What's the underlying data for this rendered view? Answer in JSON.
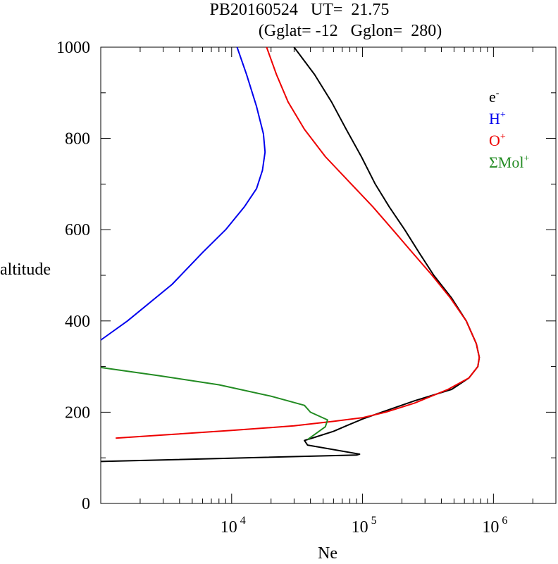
{
  "chart_data": {
    "type": "line",
    "title": "PB20160524   UT=  21.75",
    "subtitle": "(Gglat= -12   Gglon=  280)",
    "xlabel": "Ne",
    "ylabel": "altitude",
    "x_scale": "log",
    "xlim": [
      1000,
      3000000
    ],
    "ylim": [
      0,
      1000
    ],
    "y_ticks": [
      0,
      200,
      400,
      600,
      800,
      1000
    ],
    "y_tick_labels": [
      "0",
      "200",
      "400",
      "600",
      "800",
      "1000"
    ],
    "x_ticks": [
      {
        "value": 10000,
        "base": "10",
        "exp": "4"
      },
      {
        "value": 100000,
        "base": "10",
        "exp": "5"
      },
      {
        "value": 1000000,
        "base": "10",
        "exp": "6"
      }
    ],
    "legend": {
      "placement": "top-right",
      "entries": [
        {
          "base": "e",
          "sup": "-",
          "color": "#000000",
          "series": "e-"
        },
        {
          "base": "H",
          "sup": "+",
          "color": "#0000ee",
          "series": "H+"
        },
        {
          "base": "O",
          "sup": "+",
          "color": "#ee0000",
          "series": "O+"
        },
        {
          "base": "ΣMol",
          "sup": "+",
          "color": "#228b22",
          "series": "ΣMol+"
        }
      ]
    },
    "series": [
      {
        "name": "e-",
        "color": "#000000",
        "points": [
          [
            1000,
            92
          ],
          [
            90000,
            106
          ],
          [
            95000,
            108
          ],
          [
            38000,
            128
          ],
          [
            36000,
            138
          ],
          [
            40000,
            142
          ],
          [
            60000,
            158
          ],
          [
            75000,
            170
          ],
          [
            100000,
            185
          ],
          [
            140000,
            200
          ],
          [
            250000,
            225
          ],
          [
            480000,
            250
          ],
          [
            650000,
            275
          ],
          [
            760000,
            300
          ],
          [
            780000,
            320
          ],
          [
            740000,
            350
          ],
          [
            620000,
            400
          ],
          [
            480000,
            450
          ],
          [
            350000,
            500
          ],
          [
            270000,
            550
          ],
          [
            210000,
            600
          ],
          [
            160000,
            650
          ],
          [
            125000,
            700
          ],
          [
            98000,
            760
          ],
          [
            75000,
            820
          ],
          [
            58000,
            880
          ],
          [
            43000,
            940
          ],
          [
            30000,
            1000
          ]
        ]
      },
      {
        "name": "H+",
        "color": "#0000ee",
        "points": [
          [
            1000,
            358
          ],
          [
            1600,
            400
          ],
          [
            3500,
            480
          ],
          [
            6000,
            550
          ],
          [
            9000,
            600
          ],
          [
            12500,
            650
          ],
          [
            15500,
            690
          ],
          [
            17200,
            730
          ],
          [
            18000,
            770
          ],
          [
            17500,
            810
          ],
          [
            15500,
            870
          ],
          [
            13000,
            940
          ],
          [
            11000,
            1000
          ]
        ]
      },
      {
        "name": "O+",
        "color": "#ee0000",
        "points": [
          [
            1300,
            143
          ],
          [
            3000,
            150
          ],
          [
            10000,
            160
          ],
          [
            30000,
            170
          ],
          [
            60000,
            180
          ],
          [
            100000,
            188
          ],
          [
            150000,
            200
          ],
          [
            250000,
            220
          ],
          [
            450000,
            250
          ],
          [
            650000,
            275
          ],
          [
            760000,
            300
          ],
          [
            780000,
            320
          ],
          [
            740000,
            350
          ],
          [
            620000,
            400
          ],
          [
            470000,
            450
          ],
          [
            340000,
            500
          ],
          [
            240000,
            550
          ],
          [
            170000,
            600
          ],
          [
            120000,
            650
          ],
          [
            82000,
            700
          ],
          [
            52000,
            760
          ],
          [
            36000,
            820
          ],
          [
            27000,
            880
          ],
          [
            22000,
            940
          ],
          [
            18500,
            1000
          ]
        ]
      },
      {
        "name": "ΣMol+",
        "color": "#228b22",
        "points": [
          [
            1000,
            298
          ],
          [
            2800,
            280
          ],
          [
            8000,
            260
          ],
          [
            20000,
            235
          ],
          [
            36000,
            215
          ],
          [
            40000,
            200
          ],
          [
            54000,
            183
          ],
          [
            52000,
            168
          ],
          [
            38000,
            140
          ]
        ]
      }
    ]
  }
}
